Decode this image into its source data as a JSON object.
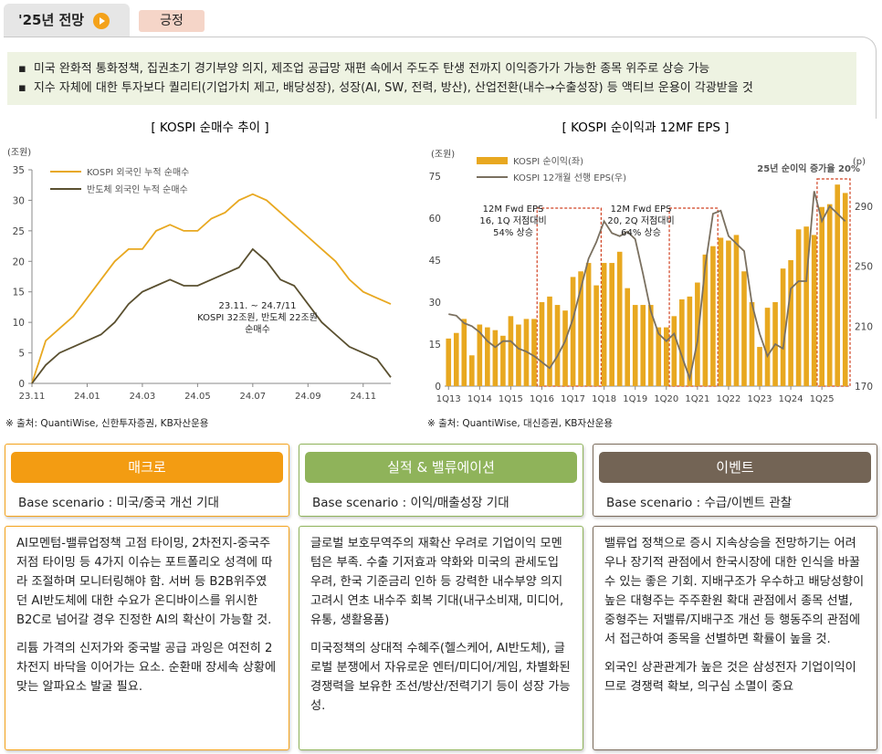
{
  "header": {
    "tab": "'25년 전망",
    "badge": "긍정"
  },
  "bullets": [
    "미국 완화적 통화정책, 집권초기 경기부양 의지, 제조업 공급망 재편 속에서 주도주 탄생 전까지 이익증가가 가능한 종목 위주로 상승 가능",
    "지수 자체에 대한 투자보다 퀄리티(기업가치 제고, 배당성장), 성장(AI, SW, 전력, 방산), 산업전환(내수→수출성장) 등 액티브 운용이 각광받을 것"
  ],
  "chart_data": [
    {
      "type": "line",
      "title": "[ KOSPI 순매수 추이 ]",
      "y_unit": "(조원)",
      "categories": [
        "23.11",
        null,
        null,
        null,
        "24.01",
        null,
        null,
        null,
        "24.03",
        null,
        null,
        null,
        "24.05",
        null,
        null,
        null,
        "24.07",
        null,
        null,
        null,
        "24.09",
        null,
        null,
        null,
        "24.11",
        null,
        null
      ],
      "series": [
        {
          "name": "KOSPI 외국인 누적 순매수",
          "color": "#e8a820",
          "values": [
            0,
            7,
            9,
            11,
            14,
            17,
            20,
            22,
            22,
            25,
            26,
            25,
            25,
            27,
            28,
            30,
            31,
            30,
            28,
            26,
            24,
            22,
            20,
            17,
            15,
            14,
            13
          ]
        },
        {
          "name": "반도체 외국인 누적 순매수",
          "color": "#5a5030",
          "values": [
            0,
            3,
            5,
            6,
            7,
            8,
            10,
            13,
            15,
            16,
            17,
            16,
            16,
            17,
            18,
            19,
            22,
            20,
            17,
            16,
            13,
            10,
            8,
            6,
            5,
            4,
            1
          ]
        }
      ],
      "ylim": [
        0,
        35
      ],
      "yticks": [
        0,
        5,
        10,
        15,
        20,
        25,
        30,
        35
      ],
      "annotations": [
        [
          "23.11. ~ 24.7/11",
          "KOSPI 32조원, 반도체 22조원",
          "순매수"
        ]
      ],
      "source": "※ 출처: QuantiWise, 신한투자증권, KB자산운용"
    },
    {
      "type": "combo",
      "title": "[ KOSPI 순이익과 12MF EPS ]",
      "y_unit": "(조원)",
      "y2_unit": "(p)",
      "categories": [
        "1Q13",
        null,
        null,
        null,
        "1Q14",
        null,
        null,
        null,
        "1Q15",
        null,
        null,
        null,
        "1Q16",
        null,
        null,
        null,
        "1Q17",
        null,
        null,
        null,
        "1Q18",
        null,
        null,
        null,
        "1Q19",
        null,
        null,
        null,
        "1Q20",
        null,
        null,
        null,
        "1Q21",
        null,
        null,
        null,
        "1Q22",
        null,
        null,
        null,
        "1Q23",
        null,
        null,
        null,
        "1Q24",
        null,
        null,
        null,
        "1Q25",
        null,
        null,
        null
      ],
      "series": [
        {
          "name": "KOSPI 순이익(좌)",
          "color": "#e8a820",
          "type": "bar",
          "values": [
            17,
            19,
            24,
            11,
            22,
            21,
            20,
            18,
            25,
            22,
            24,
            24,
            30,
            32,
            29,
            27,
            39,
            41,
            44,
            36,
            44,
            44,
            48,
            35,
            29,
            29,
            29,
            21,
            21,
            25,
            31,
            32,
            37,
            47,
            50,
            53,
            52,
            54,
            41,
            30,
            14,
            28,
            30,
            42,
            45,
            56,
            57,
            54,
            64,
            65,
            72,
            69
          ]
        },
        {
          "name": "KOSPI 12개월 선행 EPS(우)",
          "color": "#7a7060",
          "type": "line",
          "axis": "y2",
          "values": [
            218,
            217,
            212,
            210,
            206,
            200,
            196,
            200,
            200,
            195,
            193,
            190,
            186,
            182,
            190,
            200,
            215,
            235,
            255,
            266,
            280,
            272,
            270,
            273,
            268,
            245,
            220,
            205,
            200,
            205,
            190,
            175,
            200,
            250,
            285,
            287,
            270,
            265,
            260,
            225,
            205,
            190,
            198,
            195,
            235,
            240,
            240,
            300,
            280,
            290,
            285,
            280
          ]
        }
      ],
      "ylim": [
        0,
        75
      ],
      "yticks": [
        0,
        15,
        30,
        45,
        60,
        75
      ],
      "y2lim": [
        170,
        310
      ],
      "y2ticks": [
        170,
        210,
        250,
        290
      ],
      "annotations": [
        [
          "12M Fwd EPS",
          "16, 1Q 저점대비",
          "54% 상승"
        ],
        [
          "12M Fwd EPS",
          "20, 2Q 저점대비",
          "64% 상승"
        ],
        [
          "25년 순이익 증가율 20%"
        ]
      ],
      "source": "※ 출처: QuantiWise, 대신증권, KB자산운용"
    }
  ],
  "columns": [
    {
      "title": "매크로",
      "scenario": "Base scenario : 미국/중국 개선 기대",
      "paragraphs": [
        "AI모멘텀-밸류업정책 고점 타이밍, 2차전지-중국주 저점 타이밍 등 4가지 이슈는 포트폴리오 성격에 따라 조절하며 모니터링해야 함. 서버 등 B2B위주였던 AI반도체에 대한 수요가 온디바이스를 위시한 B2C로 넘어갈 경우 진정한 AI의 확산이 가능할 것.",
        "리튬 가격의 신저가와 중국발 공급 과잉은 여전히 2차전지 바닥을 이어가는 요소. 순환매 장세속 상황에 맞는 알파요소 발굴 필요."
      ]
    },
    {
      "title": "실적 & 밸류에이션",
      "scenario": "Base scenario : 이익/매출성장 기대",
      "paragraphs": [
        "글로벌 보호무역주의 재확산 우려로 기업이익 모멘텀은 부족. 수출 기저효과 약화와 미국의 관세도입 우려, 한국 기준금리 인하 등 강력한 내수부양 의지 고려시 연초 내수주 회복 기대(내구소비재, 미디어, 유통, 생활용품)",
        "미국정책의 상대적 수혜주(헬스케어, AI반도체), 글로벌 분쟁에서 자유로운 엔터/미디어/게임, 차별화된 경쟁력을 보유한 조선/방산/전력기기 등이 성장 가능성."
      ]
    },
    {
      "title": "이벤트",
      "scenario": "Base scenario : 수급/이벤트 관찰",
      "paragraphs": [
        "밸류업 정책으로 증시 지속상승을 전망하기는 어려우나 장기적 관점에서 한국시장에 대한 인식을 바꿀 수 있는 좋은 기회. 지배구조가 우수하고 배당성향이 높은 대형주는 주주환원 확대 관점에서 종목 선별, 중형주는 저밸류/지배구조 개선 등 행동주의 관점에서 접근하여 종목을 선별하면 확률이 높을 것.",
        "외국인 상관관계가 높은 것은 삼성전자 기업이익이므로 경쟁력 확보, 의구심 소멸이 중요"
      ]
    }
  ]
}
